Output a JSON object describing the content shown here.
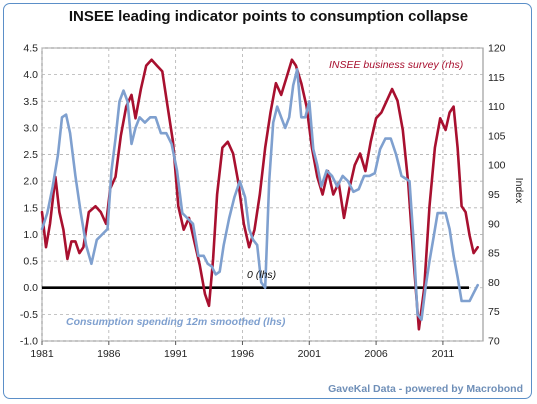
{
  "title": "INSEE leading indicator points to consumption collapse",
  "footer": "GaveKal Data - powered by Macrobond",
  "colors": {
    "red_series": "#a8102f",
    "blue_series": "#7fa0cf",
    "zero_line": "#000000",
    "grid": "#b0b0b0",
    "frame": "#5b8fc8"
  },
  "chart_data": {
    "type": "line",
    "title": "INSEE leading indicator points to consumption collapse",
    "xlabel": "",
    "ylabel_left": "",
    "ylabel_right": "Index",
    "xlim": [
      1981,
      2014
    ],
    "ylim_left": [
      -1.0,
      4.5
    ],
    "ylim_right": [
      70,
      120
    ],
    "x_ticks": [
      "1981",
      "1986",
      "1991",
      "1996",
      "2001",
      "2006",
      "2011"
    ],
    "y_ticks_left": [
      "4.5",
      "4.0",
      "3.5",
      "3.0",
      "2.5",
      "2.0",
      "1.5",
      "1.0",
      "0.5",
      "0.0",
      "-0.5",
      "-1.0"
    ],
    "y_ticks_right": [
      "120",
      "115",
      "110",
      "105",
      "100",
      "95",
      "90",
      "85",
      "80",
      "75",
      "70"
    ],
    "grid": true,
    "annotations": [
      {
        "text": "INSEE business survey (rhs)",
        "series": "INSEE business survey (rhs)"
      },
      {
        "text": "0 (lhs)",
        "series": "zero"
      },
      {
        "text": "Consumption spending 12m smoothed (lhs)",
        "series": "Consumption spending 12m smoothed (lhs)"
      }
    ],
    "series": [
      {
        "name": "INSEE business survey (rhs)",
        "axis": "right",
        "color": "#a8102f",
        "x": [
          1981.0,
          1981.3,
          1981.6,
          1982.0,
          1982.3,
          1982.6,
          1982.9,
          1983.2,
          1983.5,
          1983.8,
          1984.1,
          1984.5,
          1985.0,
          1985.4,
          1985.8,
          1986.1,
          1986.5,
          1986.9,
          1987.3,
          1987.7,
          1988.0,
          1988.4,
          1988.8,
          1989.2,
          1989.6,
          1990.0,
          1990.4,
          1990.8,
          1991.2,
          1991.6,
          1992.0,
          1992.4,
          1992.8,
          1993.2,
          1993.5,
          1993.8,
          1994.1,
          1994.5,
          1994.9,
          1995.3,
          1995.7,
          1996.1,
          1996.5,
          1996.9,
          1997.3,
          1997.7,
          1998.1,
          1998.5,
          1998.9,
          1999.3,
          1999.7,
          2000.0,
          2000.4,
          2000.8,
          2001.2,
          2001.6,
          2002.0,
          2002.4,
          2002.8,
          2003.2,
          2003.6,
          2004.0,
          2004.4,
          2004.8,
          2005.2,
          2005.6,
          2006.0,
          2006.4,
          2006.8,
          2007.2,
          2007.6,
          2008.0,
          2008.4,
          2008.8,
          2009.2,
          2009.6,
          2010.0,
          2010.4,
          2010.8,
          2011.2,
          2011.5,
          2011.8,
          2012.1,
          2012.4,
          2012.7,
          2013.0,
          2013.3,
          2013.6
        ],
        "values": [
          92,
          86,
          90,
          98,
          92,
          89,
          84,
          87,
          87,
          85,
          86,
          92,
          93,
          92,
          90,
          96,
          98,
          105,
          110,
          112,
          108,
          113,
          117,
          118,
          117,
          116,
          110,
          104,
          93,
          89,
          91,
          87,
          83,
          78,
          76,
          84,
          95,
          103,
          104,
          102,
          97,
          90,
          86,
          89,
          95,
          103,
          109,
          114,
          112,
          115,
          118,
          117,
          114,
          110,
          103,
          98,
          95,
          99,
          95,
          97,
          91,
          96,
          100,
          102,
          99,
          104,
          108,
          109,
          111,
          113,
          111,
          106,
          97,
          84,
          72,
          79,
          93,
          103,
          108,
          106,
          109,
          110,
          103,
          93,
          92,
          88,
          85,
          86
        ]
      },
      {
        "name": "Consumption spending 12m smoothed (lhs)",
        "axis": "left",
        "color": "#7fa0cf",
        "x": [
          1981.0,
          1981.4,
          1981.8,
          1982.2,
          1982.5,
          1982.8,
          1983.1,
          1983.5,
          1983.9,
          1984.3,
          1984.7,
          1985.1,
          1985.5,
          1985.9,
          1986.2,
          1986.5,
          1986.8,
          1987.1,
          1987.4,
          1987.7,
          1988.0,
          1988.3,
          1988.7,
          1989.1,
          1989.5,
          1989.9,
          1990.3,
          1990.7,
          1991.1,
          1991.5,
          1991.9,
          1992.3,
          1992.7,
          1993.1,
          1993.4,
          1993.7,
          1994.0,
          1994.3,
          1994.6,
          1995.0,
          1995.4,
          1995.8,
          1996.2,
          1996.5,
          1996.8,
          1997.1,
          1997.4,
          1997.7,
          1998.0,
          1998.3,
          1998.6,
          1998.9,
          1999.2,
          1999.5,
          1999.8,
          2000.1,
          2000.4,
          2000.7,
          2001.0,
          2001.3,
          2001.6,
          2001.9,
          2002.3,
          2002.7,
          2003.1,
          2003.5,
          2003.9,
          2004.3,
          2004.7,
          2005.1,
          2005.5,
          2005.9,
          2006.3,
          2006.7,
          2007.1,
          2007.5,
          2007.9,
          2008.2,
          2008.5,
          2008.8,
          2009.1,
          2009.4,
          2009.7,
          2010.0,
          2010.3,
          2010.6,
          2010.9,
          2011.2,
          2011.5,
          2011.8,
          2012.1,
          2012.4,
          2012.7,
          2013.0,
          2013.3,
          2013.6
        ],
        "values": [
          1.1,
          1.4,
          1.9,
          2.5,
          3.2,
          3.25,
          2.9,
          2.1,
          1.4,
          0.8,
          0.45,
          0.9,
          1.0,
          1.1,
          2.2,
          2.8,
          3.5,
          3.7,
          3.5,
          2.7,
          3.0,
          3.2,
          3.1,
          3.2,
          3.2,
          2.9,
          2.9,
          2.7,
          2.2,
          1.4,
          1.3,
          1.2,
          0.6,
          0.6,
          0.45,
          0.4,
          0.25,
          0.3,
          0.8,
          1.3,
          1.7,
          2.0,
          1.7,
          1.1,
          0.9,
          0.8,
          0.1,
          0.0,
          2.0,
          3.1,
          3.4,
          3.2,
          3.0,
          3.2,
          3.8,
          4.1,
          3.2,
          3.2,
          3.5,
          2.6,
          2.3,
          1.9,
          2.2,
          2.1,
          1.9,
          2.1,
          2.0,
          1.8,
          1.85,
          2.1,
          2.1,
          2.15,
          2.6,
          2.8,
          2.8,
          2.5,
          2.1,
          2.05,
          2.0,
          0.9,
          -0.5,
          -0.6,
          0.0,
          0.5,
          0.95,
          1.4,
          1.4,
          1.4,
          1.1,
          0.6,
          0.2,
          -0.25,
          -0.25,
          -0.25,
          -0.1,
          0.05
        ]
      }
    ]
  }
}
